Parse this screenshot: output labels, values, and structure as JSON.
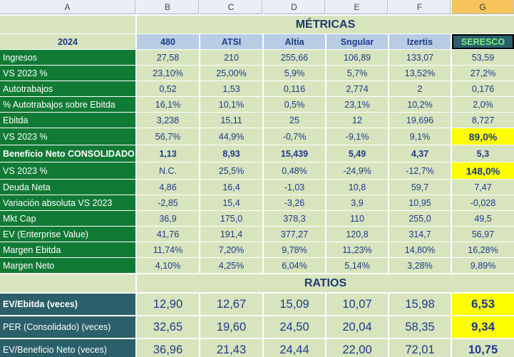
{
  "column_headers": [
    "A",
    "B",
    "C",
    "D",
    "E",
    "F",
    "G"
  ],
  "selected_column": "G",
  "metrics_title": "MÉTRICAS",
  "year_label": "2024",
  "companies": [
    "480",
    "ATSI",
    "Altia",
    "Sngular",
    "Izertis",
    "SERESCO"
  ],
  "metrics_rows": [
    {
      "label": "Ingresos",
      "values": [
        "27,58",
        "210",
        "255,66",
        "106,89",
        "133,07",
        "53,59"
      ]
    },
    {
      "label": "VS 2023 %",
      "values": [
        "23,10%",
        "25,00%",
        "5,9%",
        "5,7%",
        "13,52%",
        "27,2%"
      ]
    },
    {
      "label": "Autotrabajos",
      "values": [
        "0,52",
        "1,53",
        "0,116",
        "2,774",
        "2",
        "0,176"
      ]
    },
    {
      "label": "% Autotrabajos sobre Ebitda",
      "values": [
        "16,1%",
        "10,1%",
        "0,5%",
        "23,1%",
        "10,2%",
        "2,0%"
      ]
    },
    {
      "label": "Ebitda",
      "values": [
        "3,238",
        "15,11",
        "25",
        "12",
        "19,696",
        "8,727"
      ]
    },
    {
      "label": "VS 2023 %",
      "values": [
        "56,7%",
        "44,9%",
        "-0,7%",
        "-9,1%",
        "9,1%",
        "89,0%"
      ],
      "highlight_last": true
    },
    {
      "label": "Beneficio Neto CONSOLIDADO",
      "values": [
        "1,13",
        "8,93",
        "15,439",
        "5,49",
        "4,37",
        "5,3"
      ],
      "bold": true
    },
    {
      "label": "VS 2023 %",
      "values": [
        "N.C.",
        "25,5%",
        "0,48%",
        "-24,9%",
        "-12,7%",
        "148,0%"
      ],
      "highlight_last": true
    },
    {
      "label": "Deuda Neta",
      "values": [
        "4,86",
        "16,4",
        "-1,03",
        "10,8",
        "59,7",
        "7,47"
      ]
    },
    {
      "label": "Variación absoluta VS 2023",
      "values": [
        "-2,85",
        "15,4",
        "-3,26",
        "3,9",
        "10,95",
        "-0,028"
      ]
    },
    {
      "label": "Mkt Cap",
      "values": [
        "36,9",
        "175,0",
        "378,3",
        "110",
        "255,0",
        "49,5"
      ]
    },
    {
      "label": "EV (Enterprise Value)",
      "values": [
        "41,76",
        "191,4",
        "377,27",
        "120,8",
        "314,7",
        "56,97"
      ]
    },
    {
      "label": "Margen Ebitda",
      "values": [
        "11,74%",
        "7,20%",
        "9,78%",
        "11,23%",
        "14,80%",
        "16,28%"
      ]
    },
    {
      "label": "Margen Neto",
      "values": [
        "4,10%",
        "4,25%",
        "6,04%",
        "5,14%",
        "3,28%",
        "9,89%"
      ]
    }
  ],
  "ratios_title": "RATIOS",
  "ratios_rows": [
    {
      "label": "EV/Ebitda (veces)",
      "values": [
        "12,90",
        "12,67",
        "15,09",
        "10,07",
        "15,98",
        "6,53"
      ],
      "highlight_last": true,
      "style": "dark"
    },
    {
      "label": "PER (Consolidado) (veces)",
      "values": [
        "32,65",
        "19,60",
        "24,50",
        "20,04",
        "58,35",
        "9,34"
      ],
      "highlight_last": true,
      "style": "dark"
    },
    {
      "label": "EV/Beneficio Neto (veces)",
      "values": [
        "36,96",
        "21,43",
        "24,44",
        "22,00",
        "72,01",
        "10,75"
      ],
      "highlight_last": false,
      "style": "dark"
    }
  ],
  "colors": {
    "label_green": "#117a35",
    "cell_green": "#d7e4bd",
    "header_blue": "#b8cce4",
    "highlight": "#ffff00",
    "dark_teal": "#2b5f6a",
    "text_blue": "#1f3a8a"
  }
}
